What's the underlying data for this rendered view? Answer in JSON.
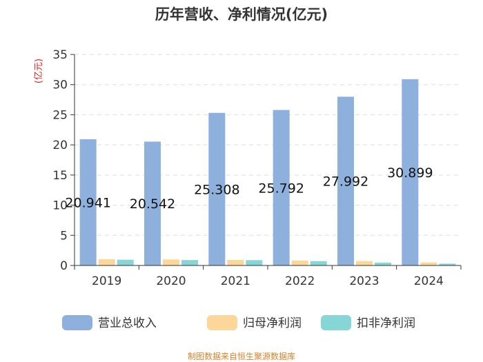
{
  "chart_data": {
    "type": "bar",
    "title": "历年营收、净利情况(亿元)",
    "ylabel": "(亿元)",
    "xlabel": "",
    "ylim": [
      0,
      35
    ],
    "yticks": [
      0,
      5,
      10,
      15,
      20,
      25,
      30,
      35
    ],
    "categories": [
      "2019",
      "2020",
      "2021",
      "2022",
      "2023",
      "2024"
    ],
    "series": [
      {
        "name": "营业总收入",
        "color": "#8eb0dc",
        "values": [
          20.941,
          20.542,
          25.308,
          25.792,
          27.992,
          30.899
        ],
        "labels": [
          "20.941",
          "20.542",
          "25.308",
          "25.792",
          "27.992",
          "30.899"
        ]
      },
      {
        "name": "归母净利润",
        "color": "#fdd79a",
        "values": [
          1.05,
          1.0,
          0.92,
          0.82,
          0.72,
          0.5
        ]
      },
      {
        "name": "扣非净利润",
        "color": "#86d6d5",
        "values": [
          0.95,
          0.9,
          0.88,
          0.72,
          0.48,
          0.3
        ]
      }
    ],
    "grid": true,
    "legend": "bottom",
    "source": "制图数据来自恒生聚源数据库"
  }
}
